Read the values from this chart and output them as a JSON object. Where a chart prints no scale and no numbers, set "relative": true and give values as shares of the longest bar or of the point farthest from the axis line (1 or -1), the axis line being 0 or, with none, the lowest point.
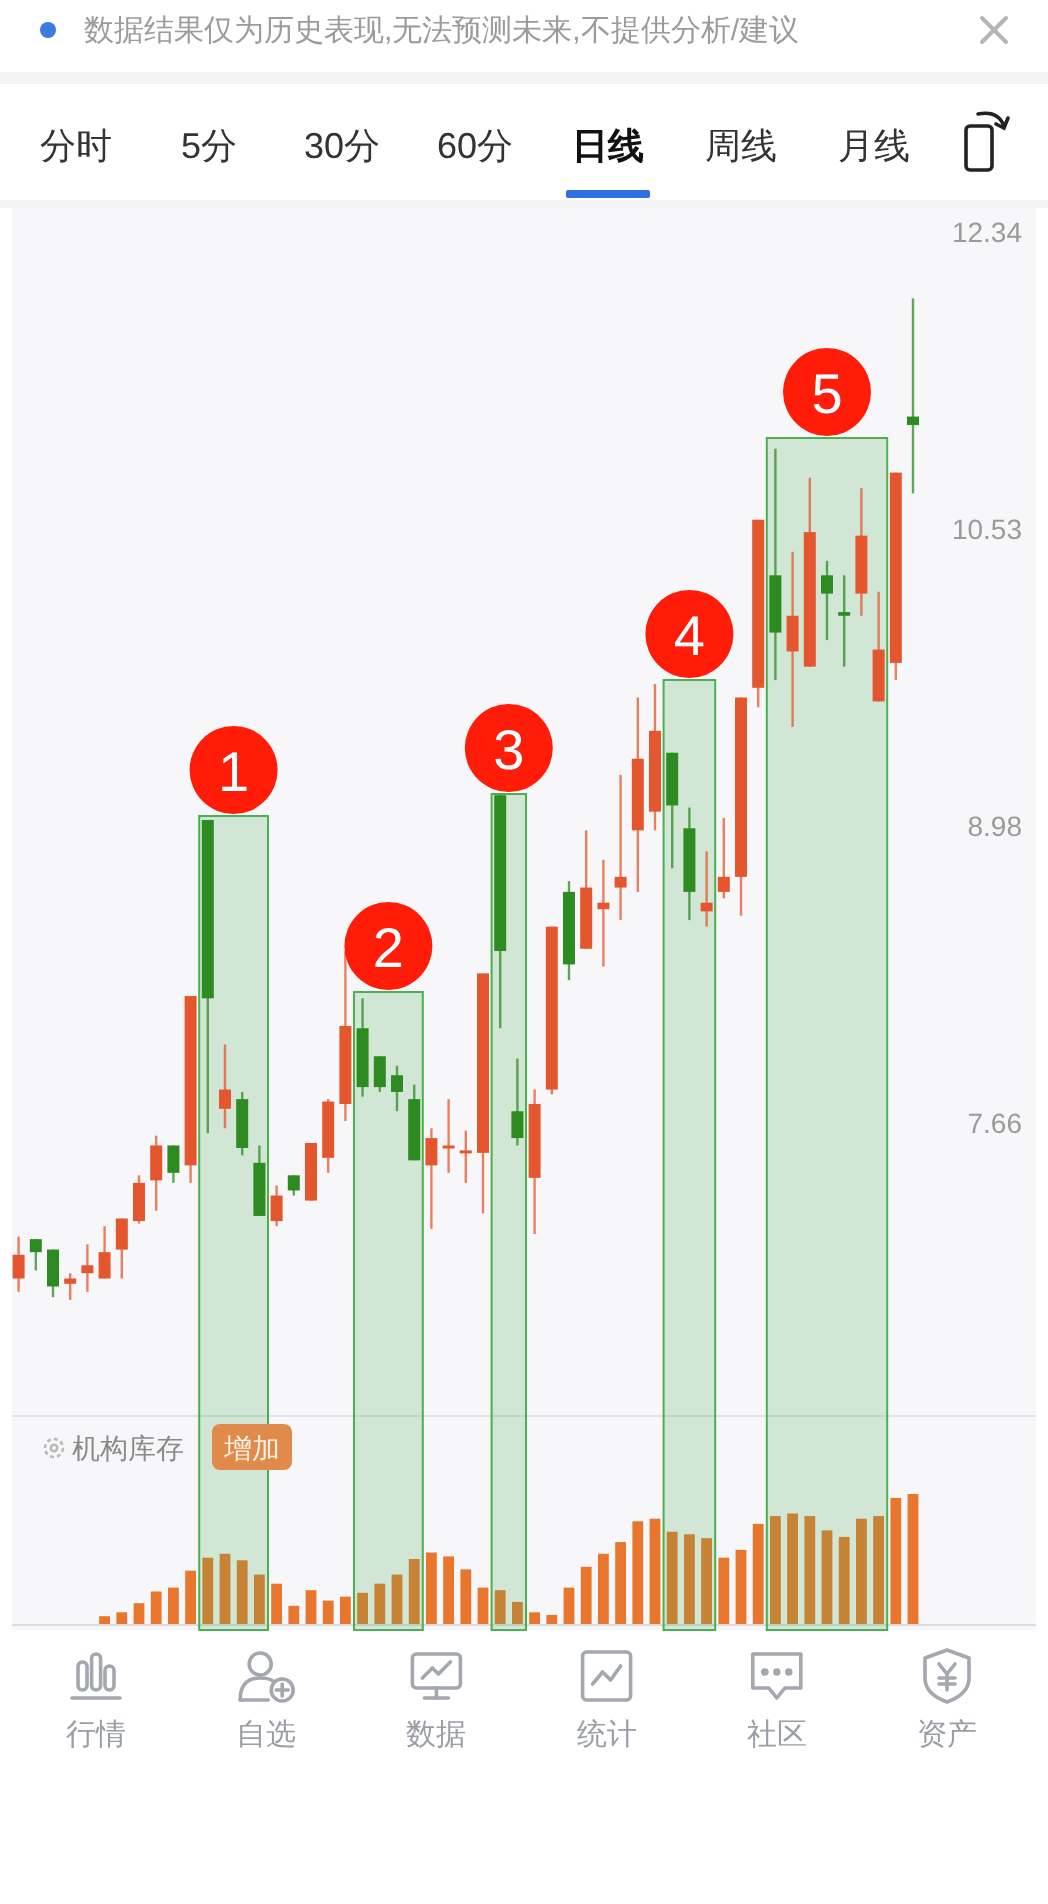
{
  "chart_data": [
    {
      "type": "candlestick",
      "categories": [
        null,
        null,
        null,
        null,
        null,
        null,
        null,
        null,
        null,
        null,
        null,
        null,
        null,
        null,
        null,
        null,
        null,
        null,
        null,
        null,
        null,
        null,
        null,
        null,
        null,
        null,
        null,
        null,
        null,
        null,
        null,
        null,
        null,
        null,
        null,
        null,
        null,
        null,
        null,
        null,
        null,
        null,
        null,
        null,
        null,
        null,
        null,
        null,
        null,
        null,
        null,
        null,
        null
      ],
      "ohlc": [
        [
          7.05,
          7.21,
          7.0,
          7.14
        ],
        [
          7.2,
          7.2,
          7.08,
          7.15
        ],
        [
          7.16,
          7.16,
          6.98,
          7.02
        ],
        [
          7.03,
          7.07,
          6.97,
          7.05
        ],
        [
          7.07,
          7.18,
          7.0,
          7.1
        ],
        [
          7.05,
          7.25,
          7.05,
          7.15
        ],
        [
          7.16,
          7.28,
          7.05,
          7.28
        ],
        [
          7.27,
          7.45,
          7.26,
          7.42
        ],
        [
          7.43,
          7.61,
          7.31,
          7.57
        ],
        [
          7.57,
          7.57,
          7.42,
          7.46
        ],
        [
          7.49,
          8.2,
          7.42,
          8.2
        ],
        [
          9.01,
          9.01,
          7.62,
          8.19
        ],
        [
          7.72,
          7.99,
          7.64,
          7.8
        ],
        [
          7.76,
          7.79,
          7.53,
          7.56
        ],
        [
          7.5,
          7.57,
          7.29,
          7.29
        ],
        [
          7.27,
          7.41,
          7.25,
          7.37
        ],
        [
          7.45,
          7.45,
          7.37,
          7.39
        ],
        [
          7.35,
          7.58,
          7.35,
          7.58
        ],
        [
          7.52,
          7.76,
          7.46,
          7.75
        ],
        [
          7.74,
          8.4,
          7.67,
          8.07
        ],
        [
          8.06,
          8.19,
          7.77,
          7.81
        ],
        [
          7.94,
          7.94,
          7.79,
          7.81
        ],
        [
          7.86,
          7.9,
          7.71,
          7.79
        ],
        [
          7.76,
          7.82,
          7.51,
          7.51
        ],
        [
          7.49,
          7.64,
          7.24,
          7.6
        ],
        [
          7.56,
          7.76,
          7.46,
          7.57
        ],
        [
          7.54,
          7.63,
          7.42,
          7.55
        ],
        [
          7.54,
          8.3,
          7.3,
          8.3
        ],
        [
          9.13,
          9.13,
          8.06,
          8.4
        ],
        [
          7.71,
          7.93,
          7.57,
          7.6
        ],
        [
          7.44,
          7.8,
          7.22,
          7.74
        ],
        [
          7.8,
          8.51,
          7.78,
          8.51
        ],
        [
          8.67,
          8.72,
          8.27,
          8.34
        ],
        [
          8.41,
          8.96,
          8.41,
          8.69
        ],
        [
          8.59,
          8.82,
          8.33,
          8.62
        ],
        [
          8.69,
          9.23,
          8.54,
          8.74
        ],
        [
          8.96,
          9.62,
          8.67,
          9.31
        ],
        [
          9.05,
          9.69,
          8.96,
          9.45
        ],
        [
          9.34,
          9.34,
          8.78,
          9.08
        ],
        [
          8.97,
          9.07,
          8.54,
          8.67
        ],
        [
          8.58,
          8.86,
          8.51,
          8.62
        ],
        [
          8.67,
          9.02,
          8.64,
          8.74
        ],
        [
          8.74,
          9.62,
          8.56,
          9.62
        ],
        [
          9.67,
          10.58,
          9.57,
          10.58
        ],
        [
          10.27,
          10.99,
          9.71,
          9.96
        ],
        [
          9.86,
          10.4,
          9.47,
          10.05
        ],
        [
          9.78,
          10.82,
          9.78,
          10.51
        ],
        [
          10.27,
          10.35,
          9.92,
          10.17
        ],
        [
          10.07,
          10.27,
          9.78,
          10.05
        ],
        [
          10.17,
          10.76,
          10.05,
          10.49
        ],
        [
          9.6,
          10.18,
          9.6,
          9.87
        ],
        [
          9.8,
          10.85,
          9.71,
          10.85
        ],
        [
          11.18,
          11.91,
          10.73,
          11.13
        ]
      ],
      "colors": [
        "#e4572e",
        "#2e8b22",
        "#2e8b22",
        "#e4572e",
        "#e4572e",
        "#e4572e",
        "#e4572e",
        "#e4572e",
        "#e4572e",
        "#2e8b22",
        "#e4572e",
        "#2e8b22",
        "#e4572e",
        "#2e8b22",
        "#2e8b22",
        "#e4572e",
        "#2e8b22",
        "#e4572e",
        "#e4572e",
        "#e4572e",
        "#2e8b22",
        "#2e8b22",
        "#2e8b22",
        "#2e8b22",
        "#e4572e",
        "#e4572e",
        "#e4572e",
        "#e4572e",
        "#2e8b22",
        "#2e8b22",
        "#e4572e",
        "#e4572e",
        "#2e8b22",
        "#e4572e",
        "#e4572e",
        "#e4572e",
        "#e4572e",
        "#e4572e",
        "#2e8b22",
        "#2e8b22",
        "#e4572e",
        "#e4572e",
        "#e4572e",
        "#e4572e",
        "#2e8b22",
        "#e4572e",
        "#e4572e",
        "#2e8b22",
        "#2e8b22",
        "#e4572e",
        "#e4572e",
        "#e4572e",
        "#2e8b22"
      ],
      "log": true,
      "ylim": [
        6.55,
        12.5
      ],
      "yticks": [
        12.34,
        10.53,
        8.98,
        7.66
      ],
      "tick_labels": "y",
      "annotations": [
        "数据结果仅为历史表现,无法预测未来,不提供分析/建议",
        "分时",
        "5分",
        "30分",
        "60分",
        "日线",
        "周线",
        "月线",
        "1",
        "2",
        "3",
        "4",
        "5"
      ]
    },
    {
      "type": "bar",
      "categories": [
        null,
        null,
        null,
        null,
        null,
        null,
        null,
        null,
        null,
        null,
        null,
        null,
        null,
        null,
        null,
        null,
        null,
        null,
        null,
        null,
        null,
        null,
        null,
        null,
        null,
        null,
        null,
        null,
        null,
        null,
        null,
        null,
        null,
        null,
        null,
        null,
        null,
        null,
        null,
        null,
        null,
        null,
        null,
        null,
        null,
        null,
        null,
        null,
        null,
        null,
        null,
        null,
        null
      ],
      "values": [
        null,
        null,
        null,
        null,
        null,
        0.06,
        0.09,
        0.16,
        0.25,
        0.28,
        0.41,
        0.51,
        0.54,
        0.49,
        0.38,
        0.31,
        0.14,
        0.26,
        0.18,
        0.21,
        0.24,
        0.31,
        0.38,
        0.5,
        0.55,
        0.52,
        0.42,
        0.28,
        0.26,
        0.17,
        0.09,
        0.07,
        0.28,
        0.44,
        0.54,
        0.63,
        0.79,
        0.81,
        0.71,
        0.69,
        0.66,
        0.51,
        0.57,
        0.77,
        0.83,
        0.85,
        0.83,
        0.72,
        0.67,
        0.81,
        0.83,
        0.97,
        1
      ],
      "color": "#e8762d",
      "relative": true,
      "annotations": [
        "机构库存",
        "增加",
        "行情",
        "自选",
        "数据",
        "统计",
        "社区",
        "资产"
      ]
    }
  ]
}
